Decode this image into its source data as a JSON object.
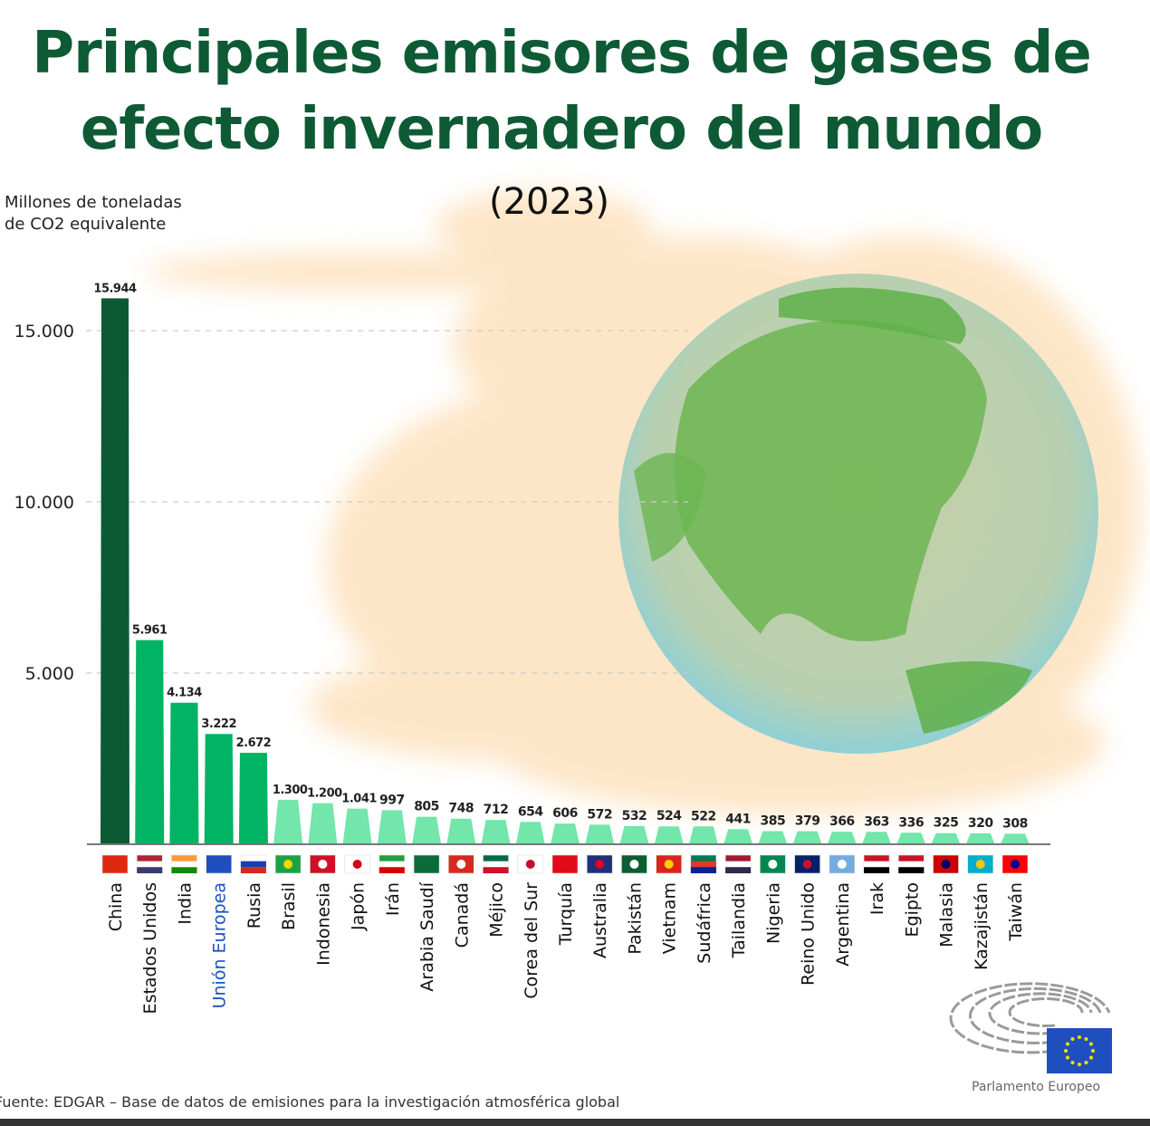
{
  "title_line1": "Principales emisores de gases de",
  "title_line2": "efecto invernadero del mundo",
  "subtitle": "(2023)",
  "source": "Fuente: EDGAR – Base de datos de emisiones para la investigación atmosférica global",
  "logo_text": "Parlamento Europeo",
  "colors": {
    "title": "#0d5a34",
    "china": "#0b5a33",
    "top": "#00b464",
    "rest": "#72e6ab",
    "eu_label": "#1a55c0",
    "smoke": "#fde2bf"
  },
  "chart_data": {
    "type": "bar",
    "title": "Principales emisores de gases de efecto invernadero del mundo (2023)",
    "ylabel": "Millones de toneladas de CO2 equivalente",
    "xlabel": "",
    "ylim": [
      0,
      16000
    ],
    "yticks": [
      5000,
      10000,
      15000
    ],
    "ytick_labels": [
      "5.000",
      "10.000",
      "15.000"
    ],
    "grid": "dashed horizontal",
    "categories": [
      "China",
      "Estados Unidos",
      "India",
      "Unión Europea",
      "Rusia",
      "Brasil",
      "Indonesia",
      "Japón",
      "Irán",
      "Arabia Saudí",
      "Canadá",
      "Méjico",
      "Corea del Sur",
      "Turquía",
      "Australia",
      "Pakistán",
      "Vietnam",
      "Sudáfrica",
      "Tailandia",
      "Nigeria",
      "Reino Unido",
      "Argentina",
      "Irak",
      "Egipto",
      "Malasia",
      "Kazajistán",
      "Taiwán"
    ],
    "values": [
      15944,
      5961,
      4134,
      3222,
      2672,
      1300,
      1200,
      1041,
      997,
      805,
      748,
      712,
      654,
      606,
      572,
      532,
      524,
      522,
      441,
      385,
      379,
      366,
      363,
      336,
      325,
      320,
      308
    ],
    "value_labels": [
      "15.944",
      "5.961",
      "4.134",
      "3.222",
      "2.672",
      "1.300",
      "1.200",
      "1.041",
      "997",
      "805",
      "748",
      "712",
      "654",
      "606",
      "572",
      "532",
      "524",
      "522",
      "441",
      "385",
      "379",
      "366",
      "363",
      "336",
      "325",
      "320",
      "308"
    ],
    "flags": [
      [
        "#de2910"
      ],
      [
        "#b22234",
        "#ffffff",
        "#3c3b6e"
      ],
      [
        "#ff9933",
        "#ffffff",
        "#138808"
      ],
      [
        "#1f4fbf"
      ],
      [
        "#ffffff",
        "#1c3fa8",
        "#d52b1e"
      ],
      [
        "#1aa343",
        "#f8d500"
      ],
      [
        "#ce1126",
        "#ffffff"
      ],
      [
        "#ffffff",
        "#d0021b"
      ],
      [
        "#239f40",
        "#ffffff",
        "#da0000"
      ],
      [
        "#0b6b3a"
      ],
      [
        "#d52b1e",
        "#ffffff"
      ],
      [
        "#006847",
        "#ffffff",
        "#ce1126"
      ],
      [
        "#ffffff",
        "#c60c30"
      ],
      [
        "#e30a17"
      ],
      [
        "#1f2f7a",
        "#e4002b"
      ],
      [
        "#0b5e33",
        "#ffffff"
      ],
      [
        "#da251d",
        "#ffcd00"
      ],
      [
        "#007a4d",
        "#de3831",
        "#002395"
      ],
      [
        "#a51931",
        "#ffffff",
        "#2d2a4a"
      ],
      [
        "#008751",
        "#ffffff"
      ],
      [
        "#012169",
        "#c8102e"
      ],
      [
        "#74acdf",
        "#ffffff"
      ],
      [
        "#ce1126",
        "#ffffff",
        "#000000"
      ],
      [
        "#ce1126",
        "#ffffff",
        "#000000"
      ],
      [
        "#cc0001",
        "#010066"
      ],
      [
        "#00afca",
        "#fec50c"
      ],
      [
        "#fe0000",
        "#000095"
      ]
    ]
  }
}
